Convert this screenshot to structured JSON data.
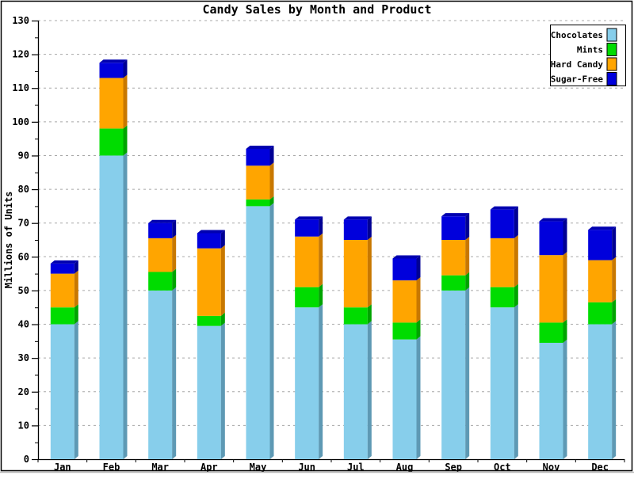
{
  "window": {
    "background": "#FFFFFF",
    "border_color": "#000000",
    "bottom_edge_color": "#B8B8B8"
  },
  "chart_data": {
    "type": "bar",
    "stacked": true,
    "effect_3d": true,
    "title": "Candy Sales by Month and Product",
    "xlabel": "",
    "ylabel": "Millions of Units",
    "categories": [
      "Jan",
      "Feb",
      "Mar",
      "Apr",
      "May",
      "Jun",
      "Jul",
      "Aug",
      "Sep",
      "Oct",
      "Nov",
      "Dec"
    ],
    "series": [
      {
        "name": "Chocolates",
        "color": "#87CEEB",
        "side_color": "#5E99B4",
        "values": [
          40,
          90,
          50,
          39.5,
          75,
          45,
          40,
          35.5,
          50,
          45,
          34.5,
          40
        ]
      },
      {
        "name": "Mints",
        "color": "#00DC00",
        "side_color": "#00A400",
        "values": [
          5,
          8,
          5.5,
          3,
          2,
          6,
          5,
          5,
          4.5,
          6,
          6,
          6.5
        ]
      },
      {
        "name": "Hard Candy",
        "color": "#FFA500",
        "side_color": "#C87800",
        "values": [
          10,
          15,
          10,
          20,
          10,
          15,
          20,
          12.5,
          10.5,
          14.5,
          20,
          12.5
        ]
      },
      {
        "name": "Sugar-Free",
        "color": "#0000DC",
        "side_color": "#000094",
        "top_color": "#0000B0",
        "values": [
          3,
          4.5,
          4.5,
          4.5,
          5,
          5,
          6,
          6.5,
          7,
          8.5,
          10,
          9
        ]
      }
    ],
    "totals": [
      58,
      117.5,
      70,
      67,
      92,
      71,
      71,
      59.5,
      72,
      74,
      70.5,
      68
    ],
    "ylim": [
      0,
      130
    ],
    "ytick_step": 10,
    "yminor_step": 5,
    "yticks": [
      0,
      10,
      20,
      30,
      40,
      50,
      60,
      70,
      80,
      90,
      100,
      110,
      120,
      130
    ],
    "grid": true,
    "gridline_color": "#A8A8A8",
    "legend_position": "top-right",
    "legend_labels": [
      "Chocolates",
      "Mints",
      "Hard Candy",
      "Sugar-Free"
    ]
  }
}
